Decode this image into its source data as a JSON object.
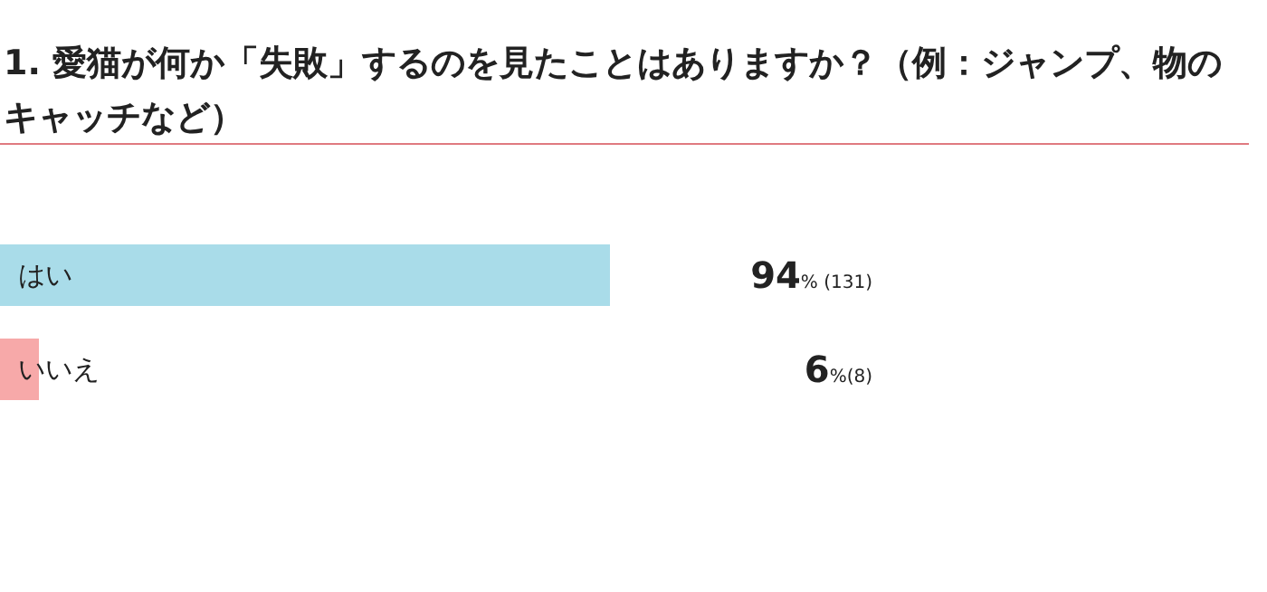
{
  "chart_data": {
    "type": "bar",
    "orientation": "horizontal",
    "title": "1. 愛猫が何か「失敗」するのを見たことはありますか？（例：ジャンプ、物のキャッチなど）",
    "categories": [
      "はい",
      "いいえ"
    ],
    "values": [
      94,
      6
    ],
    "colors": [
      "#a9dce9",
      "#f7a9a9"
    ],
    "value_labels": [
      "94% (131)",
      "6%(8)"
    ]
  }
}
